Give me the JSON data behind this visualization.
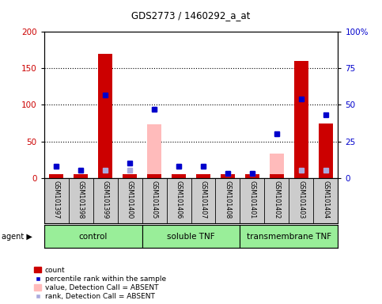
{
  "title": "GDS2773 / 1460292_a_at",
  "samples": [
    "GSM101397",
    "GSM101398",
    "GSM101399",
    "GSM101400",
    "GSM101405",
    "GSM101406",
    "GSM101407",
    "GSM101408",
    "GSM101401",
    "GSM101402",
    "GSM101403",
    "GSM101404"
  ],
  "red_bars": [
    5,
    5,
    170,
    5,
    5,
    5,
    5,
    5,
    5,
    5,
    160,
    75
  ],
  "blue_squares": [
    8,
    5,
    57,
    10,
    47,
    8,
    8,
    3,
    3,
    30,
    54,
    43
  ],
  "pink_bars": [
    5,
    5,
    5,
    5,
    73,
    3,
    3,
    3,
    3,
    33,
    5,
    5
  ],
  "lightblue_squares": [
    8,
    5,
    5,
    5,
    47,
    8,
    8,
    3,
    3,
    30,
    5,
    5
  ],
  "groups": [
    {
      "label": "control",
      "start": 0,
      "end": 3
    },
    {
      "label": "soluble TNF",
      "start": 4,
      "end": 7
    },
    {
      "label": "transmembrane TNF",
      "start": 8,
      "end": 11
    }
  ],
  "group_color": "#99ee99",
  "ylim_left": [
    0,
    200
  ],
  "ylim_right": [
    0,
    100
  ],
  "left_ticks": [
    0,
    50,
    100,
    150,
    200
  ],
  "right_ticks": [
    0,
    25,
    50,
    75,
    100
  ],
  "right_tick_labels": [
    "0",
    "25",
    "50",
    "75",
    "100%"
  ],
  "left_color": "#cc0000",
  "right_color": "#0000cc",
  "plot_bg": "#ffffff",
  "label_bg": "#cccccc",
  "bar_width": 0.6
}
